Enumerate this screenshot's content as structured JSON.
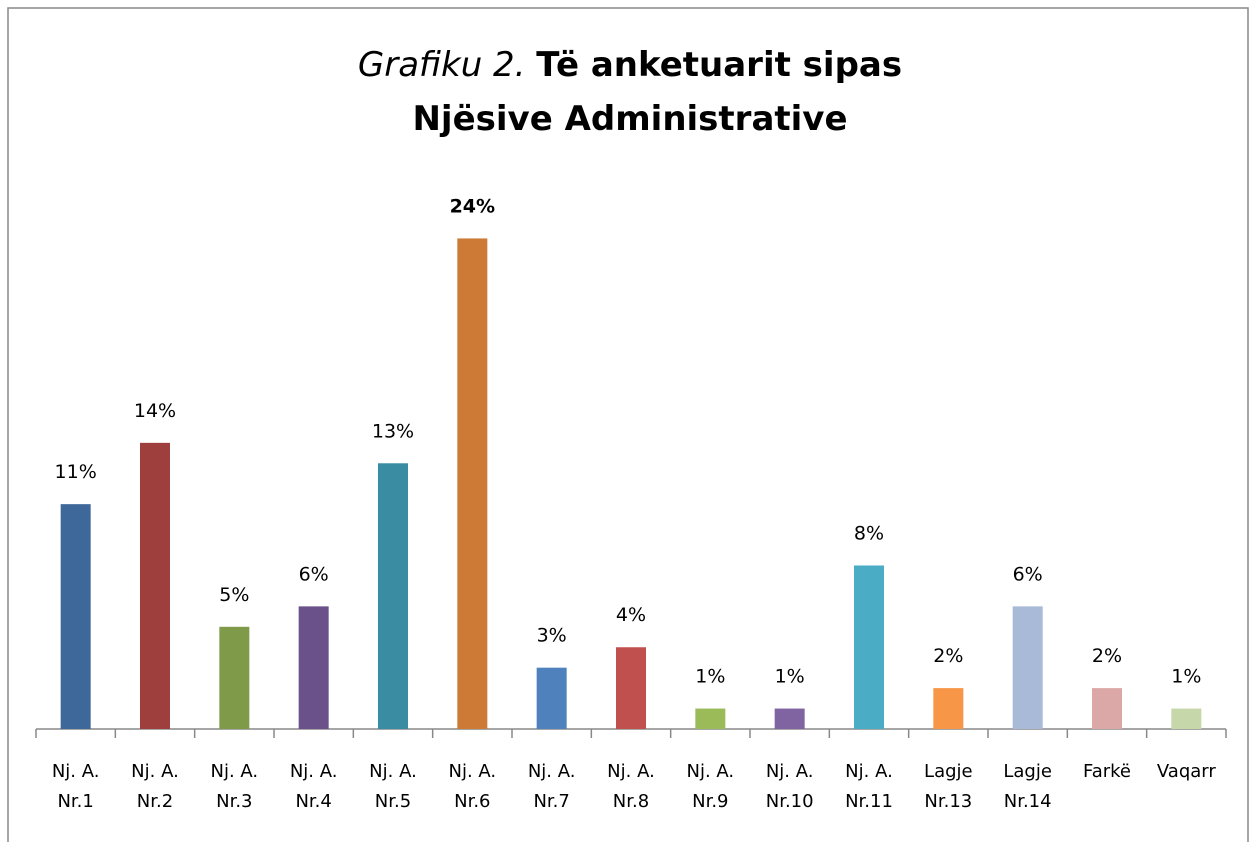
{
  "chart_data": {
    "type": "bar",
    "title": {
      "italic": "Grafiku 2.",
      "bold": "Të anketuarit sipas Njësive Administrative"
    },
    "categories": [
      "Nj. A. Nr.1",
      "Nj. A. Nr.2",
      "Nj. A. Nr.3",
      "Nj. A. Nr.4",
      "Nj. A. Nr.5",
      "Nj. A. Nr.6",
      "Nj. A. Nr.7",
      "Nj. A. Nr.8",
      "Nj. A. Nr.9",
      "Nj. A. Nr.10",
      "Nj. A. Nr.11",
      "Lagje Nr.13",
      "Lagje Nr.14",
      "Farkë",
      "Vaqarr"
    ],
    "values": [
      11,
      14,
      5,
      6,
      13,
      24,
      3,
      4,
      1,
      1,
      8,
      2,
      6,
      2,
      1
    ],
    "value_labels": [
      "11%",
      "14%",
      "5%",
      "6%",
      "13%",
      "24%",
      "3%",
      "4%",
      "1%",
      "1%",
      "8%",
      "2%",
      "6%",
      "2%",
      "1%"
    ],
    "colors": [
      "#3e679a",
      "#9e3f3d",
      "#7f9a48",
      "#6a5189",
      "#3a8ca3",
      "#cc7a36",
      "#4f81bd",
      "#c0504d",
      "#9bbb59",
      "#8064a2",
      "#4bacc6",
      "#f79646",
      "#a9b9d8",
      "#dba8a7",
      "#c6d7a9"
    ],
    "ylim": [
      0,
      25
    ]
  }
}
